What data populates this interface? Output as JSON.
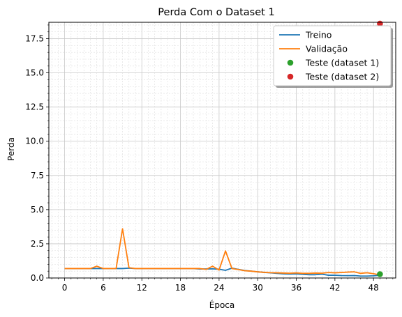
{
  "chart_data": {
    "type": "line",
    "title": "Perda Com o Dataset 1",
    "xlabel": "Época",
    "ylabel": "Perda",
    "xlim": [
      -2.45,
      51.45
    ],
    "ylim": [
      0,
      18.7
    ],
    "xticks": [
      0,
      6,
      12,
      18,
      24,
      30,
      36,
      42,
      48
    ],
    "yticks": [
      0.0,
      2.5,
      5.0,
      7.5,
      10.0,
      12.5,
      15.0,
      17.5
    ],
    "ytick_labels": [
      "0.0",
      "2.5",
      "5.0",
      "7.5",
      "10.0",
      "12.5",
      "15.0",
      "17.5"
    ],
    "grid": true,
    "legend_position": "top-right",
    "series": [
      {
        "name": "Treino",
        "color": "#1f77b4",
        "x": [
          0,
          1,
          2,
          3,
          4,
          5,
          6,
          7,
          8,
          9,
          10,
          11,
          12,
          13,
          14,
          15,
          16,
          17,
          18,
          19,
          20,
          21,
          22,
          23,
          24,
          25,
          26,
          27,
          28,
          29,
          30,
          31,
          32,
          33,
          34,
          35,
          36,
          37,
          38,
          39,
          40,
          41,
          42,
          43,
          44,
          45,
          46,
          47,
          48,
          49
        ],
        "values": [
          0.69,
          0.69,
          0.69,
          0.69,
          0.69,
          0.69,
          0.69,
          0.69,
          0.69,
          0.69,
          0.72,
          0.69,
          0.69,
          0.69,
          0.69,
          0.69,
          0.69,
          0.69,
          0.69,
          0.69,
          0.69,
          0.66,
          0.66,
          0.67,
          0.64,
          0.56,
          0.72,
          0.63,
          0.55,
          0.5,
          0.45,
          0.41,
          0.38,
          0.34,
          0.3,
          0.29,
          0.3,
          0.27,
          0.24,
          0.24,
          0.28,
          0.2,
          0.2,
          0.18,
          0.17,
          0.18,
          0.14,
          0.14,
          0.16,
          0.2
        ]
      },
      {
        "name": "Validação",
        "color": "#ff7f0e",
        "x": [
          0,
          1,
          2,
          3,
          4,
          5,
          6,
          7,
          8,
          9,
          10,
          11,
          12,
          13,
          14,
          15,
          16,
          17,
          18,
          19,
          20,
          21,
          22,
          23,
          24,
          25,
          26,
          27,
          28,
          29,
          30,
          31,
          32,
          33,
          34,
          35,
          36,
          37,
          38,
          39,
          40,
          41,
          42,
          43,
          44,
          45,
          46,
          47,
          48,
          49
        ],
        "values": [
          0.69,
          0.69,
          0.69,
          0.69,
          0.69,
          0.86,
          0.69,
          0.69,
          0.69,
          3.6,
          0.75,
          0.69,
          0.69,
          0.69,
          0.69,
          0.69,
          0.69,
          0.69,
          0.69,
          0.69,
          0.69,
          0.69,
          0.63,
          0.86,
          0.58,
          1.98,
          0.69,
          0.62,
          0.53,
          0.5,
          0.45,
          0.41,
          0.39,
          0.38,
          0.36,
          0.35,
          0.37,
          0.34,
          0.34,
          0.36,
          0.35,
          0.4,
          0.38,
          0.4,
          0.43,
          0.45,
          0.34,
          0.38,
          0.31,
          0.23
        ]
      },
      {
        "name": "Teste (dataset 1)",
        "color": "#2ca02c",
        "marker": "o",
        "x": [
          49
        ],
        "values": [
          0.28
        ]
      },
      {
        "name": "Teste (dataset 2)",
        "color": "#d62728",
        "marker": "o",
        "x": [
          49
        ],
        "values": [
          18.6
        ]
      }
    ]
  }
}
